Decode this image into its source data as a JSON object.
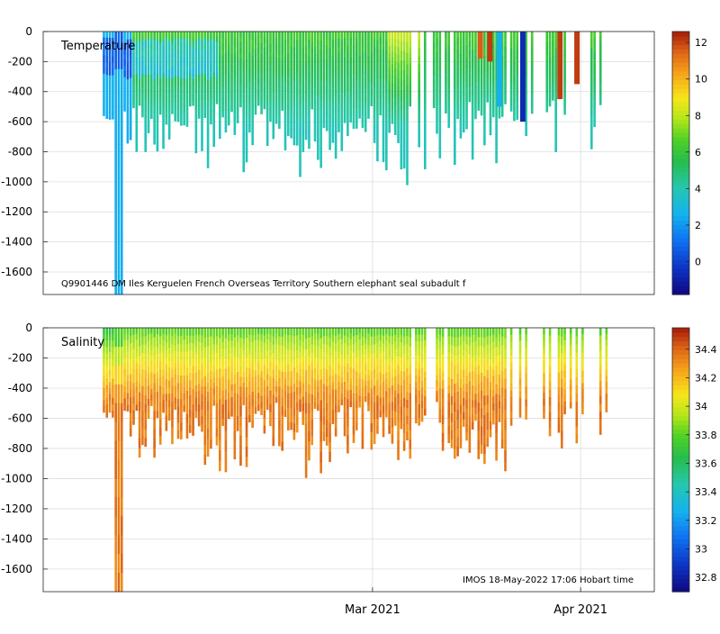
{
  "figure": {
    "watermark": "IMOS 18-May-2022 17:06 Hobart time"
  },
  "chart_data": [
    {
      "type": "heatmap",
      "variable": "Temperature",
      "title": "Temperature",
      "annotation": "Q9901446 DM Iles Kerguelen French Overseas Territory Southern elephant seal subadult f",
      "x_ticks": [],
      "ylim": [
        -1750,
        0
      ],
      "y_ticks": [
        0,
        -200,
        -400,
        -600,
        -800,
        -1000,
        -1200,
        -1400,
        -1600
      ],
      "colorbar": {
        "range": [
          -1.8,
          12.6
        ],
        "ticks": [
          0,
          2,
          4,
          6,
          8,
          10,
          12
        ]
      },
      "profiles_summary": {
        "description": "Vertical seal dive profiles plotted against time (days since first profile) with depth in m",
        "day_range": [
          0,
          50
        ],
        "max_depth_m": 1750,
        "surface_value": 6.2,
        "deep_value": 3.5,
        "special_columns": [
          {
            "day": 36.5,
            "value": 11.5,
            "depth": -180
          },
          {
            "day": 37.4,
            "value": 12,
            "depth": -200
          },
          {
            "day": 38.3,
            "value": 2.5,
            "depth": -500
          },
          {
            "day": 40.5,
            "value": -0.8,
            "depth": -600
          },
          {
            "day": 44.0,
            "value": 12,
            "depth": -450
          },
          {
            "day": 45.6,
            "value": 12,
            "depth": -350
          }
        ]
      }
    },
    {
      "type": "heatmap",
      "variable": "Salinity",
      "title": "Salinity",
      "x_ticks": [
        "Mar 2021",
        "Apr 2021"
      ],
      "ylim": [
        -1750,
        0
      ],
      "y_ticks": [
        0,
        -200,
        -400,
        -600,
        -800,
        -1000,
        -1200,
        -1400,
        -1600
      ],
      "colorbar": {
        "range": [
          32.7,
          34.55
        ],
        "ticks": [
          32.8,
          33,
          33.2,
          33.4,
          33.6,
          33.8,
          34,
          34.2,
          34.4
        ]
      },
      "profiles_summary": {
        "description": "Vertical seal dive profiles plotted against time with depth in m",
        "surface_value": 33.7,
        "mid_value": 34.2,
        "deep_value": 34.35
      }
    }
  ]
}
